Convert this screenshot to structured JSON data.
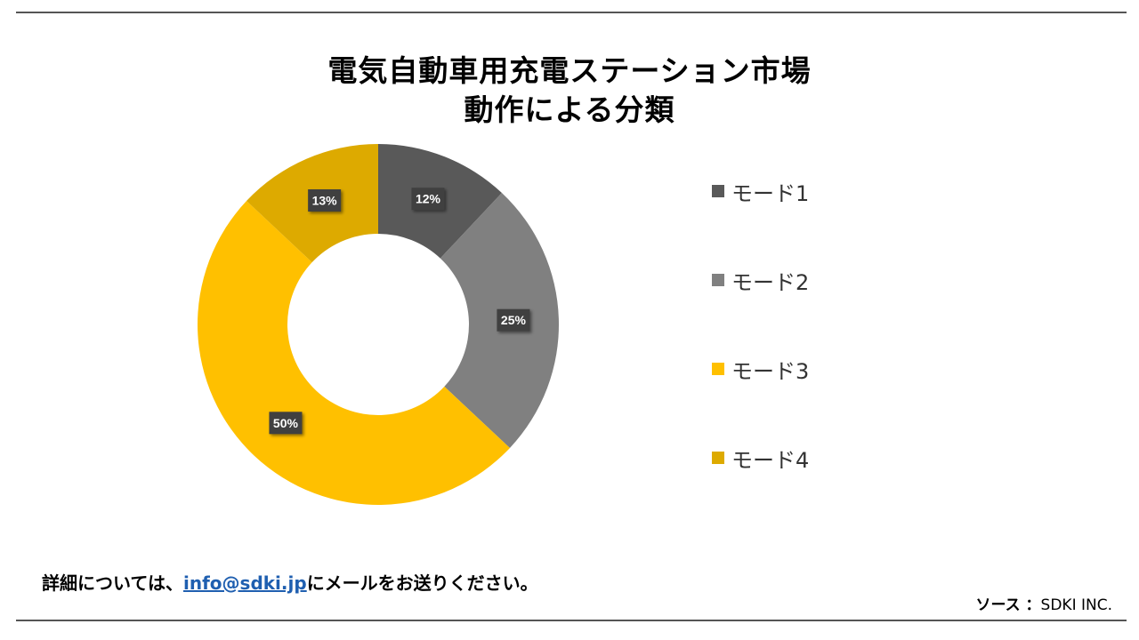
{
  "title": {
    "line1": "電気自動車用充電ステーション市場",
    "line2": "動作による分類"
  },
  "chart_data": {
    "type": "pie",
    "donut": true,
    "categories": [
      "モード1",
      "モード2",
      "モード3",
      "モード4"
    ],
    "values": [
      12,
      25,
      50,
      13
    ],
    "labels": [
      "12%",
      "25%",
      "50%",
      "13%"
    ],
    "colors": [
      "#595959",
      "#808080",
      "#FFC000",
      "#DDAA00"
    ],
    "legend_position": "right"
  },
  "footer": {
    "prefix": "詳細については、",
    "email": "info@sdki.jp",
    "suffix": "にメールをお送りください。"
  },
  "source": {
    "label": "ソース ：",
    "value": "SDKI INC."
  }
}
